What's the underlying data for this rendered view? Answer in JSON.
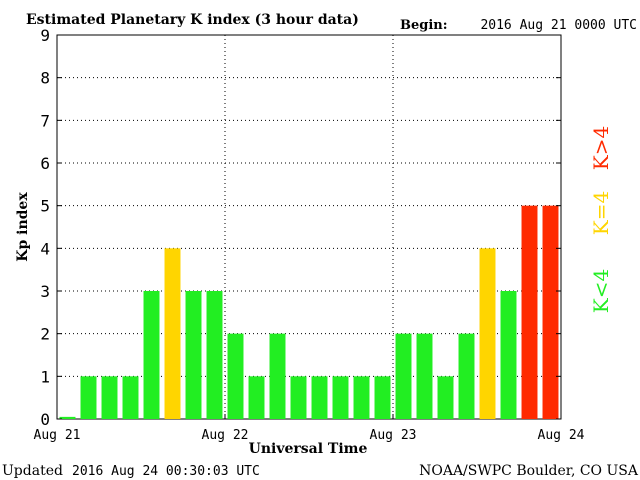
{
  "chart_data": {
    "type": "bar",
    "title": "Estimated Planetary K index (3 hour data)",
    "begin_label": "Begin:",
    "begin_value": "2016 Aug 21 0000 UTC",
    "xlabel": "Universal Time",
    "ylabel": "Kp index",
    "ylim": [
      0,
      9
    ],
    "yticks": [
      "0",
      "1",
      "2",
      "3",
      "4",
      "5",
      "6",
      "7",
      "8",
      "9"
    ],
    "xticks": [
      "Aug 21",
      "Aug 22",
      "Aug 23",
      "Aug 24"
    ],
    "grid": true,
    "values": [
      0.05,
      1,
      1,
      1,
      3,
      4,
      3,
      3,
      2,
      1,
      2,
      1,
      1,
      1,
      1,
      1,
      2,
      2,
      1,
      2,
      4,
      3,
      5,
      5
    ],
    "colors": {
      "low": "#22ee22",
      "mid": "#ffd500",
      "high": "#ff2a00"
    },
    "legend": {
      "low": "K<4",
      "mid": "K=4",
      "high": "K>4",
      "placement": "right"
    }
  },
  "footer": {
    "updated_label": "Updated",
    "updated_value": "2016 Aug 24 00:30:03 UTC",
    "source": "NOAA/SWPC Boulder, CO USA"
  }
}
